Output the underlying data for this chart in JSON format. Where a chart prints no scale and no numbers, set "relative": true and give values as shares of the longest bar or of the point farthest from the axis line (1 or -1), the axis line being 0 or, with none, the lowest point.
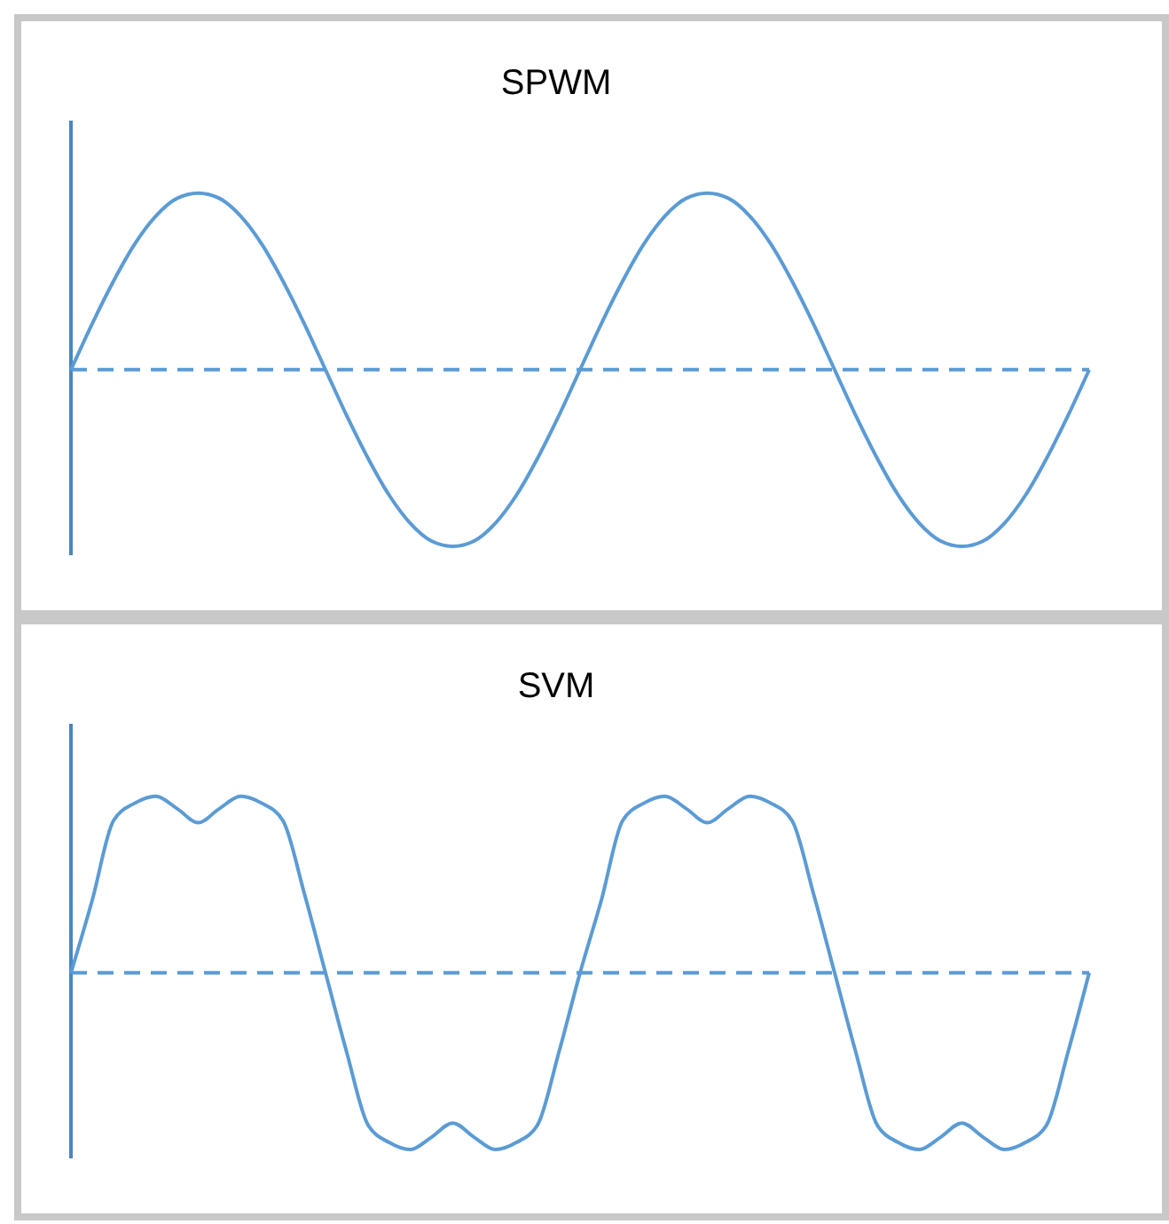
{
  "chart_data": [
    {
      "type": "line",
      "title": "SPWM",
      "relative": true,
      "line_style": "solid",
      "ref_lines": [
        {
          "axis": "y",
          "value": 0,
          "color": "#5b9bd5",
          "line_style": "dashed"
        }
      ],
      "categories": [
        null,
        null,
        null,
        null,
        null,
        null,
        null,
        null,
        null,
        null,
        null,
        null,
        null,
        null,
        null,
        null,
        null,
        null,
        null,
        null,
        null,
        null,
        null,
        null,
        null,
        null,
        null,
        null,
        null,
        null,
        null,
        null,
        null,
        null,
        null,
        null,
        null,
        null,
        null,
        null,
        null,
        null,
        null,
        null,
        null,
        null,
        null,
        null,
        null
      ],
      "series": [
        {
          "color": "#5b9bd5",
          "values": [
            0,
            0.26,
            0.5,
            0.71,
            0.87,
            0.97,
            1,
            0.97,
            0.87,
            0.71,
            0.5,
            0.26,
            0,
            -0.26,
            -0.5,
            -0.71,
            -0.87,
            -0.97,
            -1,
            -0.97,
            -0.87,
            -0.71,
            -0.5,
            -0.26,
            0,
            0.26,
            0.5,
            0.71,
            0.87,
            0.97,
            1,
            0.97,
            0.87,
            0.71,
            0.5,
            0.26,
            0,
            -0.26,
            -0.5,
            -0.71,
            -0.87,
            -0.97,
            -1,
            -0.97,
            -0.87,
            -0.71,
            -0.5,
            -0.26,
            0
          ]
        }
      ]
    },
    {
      "type": "line",
      "title": "SVM",
      "relative": true,
      "line_style": "solid",
      "ref_lines": [
        {
          "axis": "y",
          "value": 0,
          "color": "#5b9bd5",
          "line_style": "dashed"
        }
      ],
      "categories": [
        null,
        null,
        null,
        null,
        null,
        null,
        null,
        null,
        null,
        null,
        null,
        null,
        null,
        null,
        null,
        null,
        null,
        null,
        null,
        null,
        null,
        null,
        null,
        null,
        null,
        null,
        null,
        null,
        null,
        null,
        null,
        null,
        null,
        null,
        null,
        null,
        null,
        null,
        null,
        null,
        null,
        null,
        null,
        null,
        null,
        null,
        null,
        null,
        null
      ],
      "series": [
        {
          "color": "#5b9bd5",
          "values": [
            0,
            0.41,
            0.86,
            0.96,
            1,
            0.93,
            0.85,
            0.93,
            1,
            0.96,
            0.86,
            0.45,
            0,
            -0.45,
            -0.86,
            -0.96,
            -1,
            -0.93,
            -0.85,
            -0.93,
            -1,
            -0.96,
            -0.86,
            -0.45,
            0,
            0.41,
            0.86,
            0.96,
            1,
            0.93,
            0.85,
            0.93,
            1,
            0.96,
            0.86,
            0.45,
            0,
            -0.45,
            -0.86,
            -0.96,
            -1,
            -0.93,
            -0.85,
            -0.93,
            -1,
            -0.96,
            -0.86,
            -0.45,
            0
          ]
        }
      ]
    }
  ]
}
